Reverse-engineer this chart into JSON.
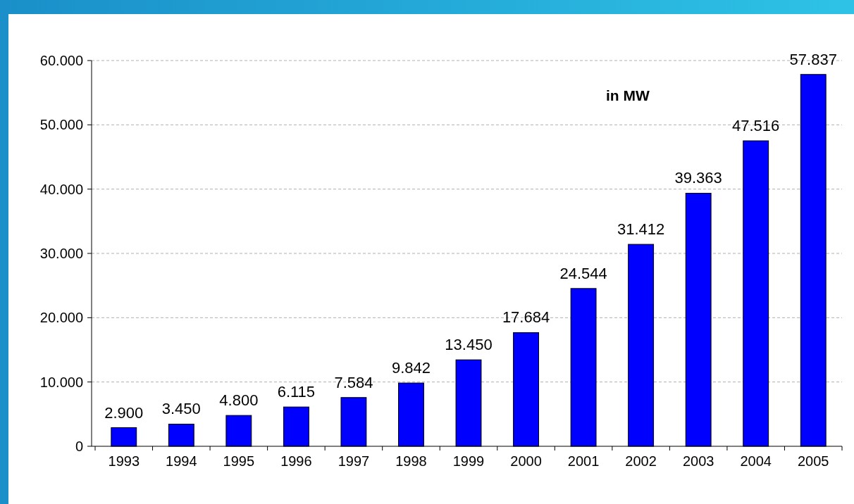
{
  "chart_data": {
    "type": "bar",
    "categories": [
      "1993",
      "1994",
      "1995",
      "1996",
      "1997",
      "1998",
      "1999",
      "2000",
      "2001",
      "2002",
      "2003",
      "2004",
      "2005"
    ],
    "values": [
      2900,
      3450,
      4800,
      6115,
      7584,
      9842,
      13450,
      17684,
      24544,
      31412,
      39363,
      47516,
      57837
    ],
    "value_labels": [
      "2.900",
      "3.450",
      "4.800",
      "6.115",
      "7.584",
      "9.842",
      "13.450",
      "17.684",
      "24.544",
      "31.412",
      "39.363",
      "47.516",
      "57.837"
    ],
    "color": "#0000ff",
    "ylim": [
      0,
      60000
    ],
    "yticks": [
      {
        "value": 0,
        "label": "0"
      },
      {
        "value": 10000,
        "label": "10.000"
      },
      {
        "value": 20000,
        "label": "20.000"
      },
      {
        "value": 30000,
        "label": "30.000"
      },
      {
        "value": 40000,
        "label": "40.000"
      },
      {
        "value": 50000,
        "label": "50.000"
      },
      {
        "value": 60000,
        "label": "60.000"
      }
    ],
    "grid": "y",
    "annotations": [
      "in MW"
    ]
  }
}
